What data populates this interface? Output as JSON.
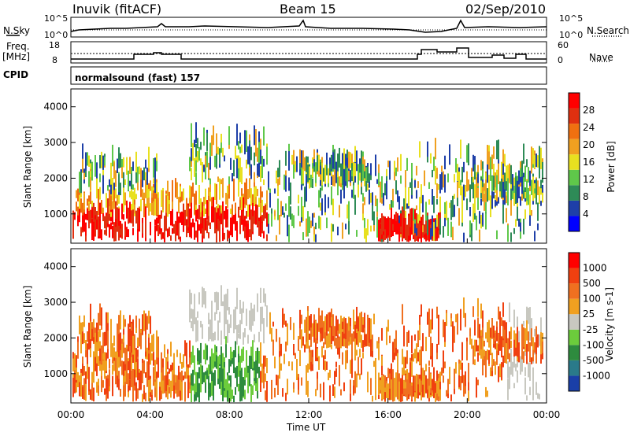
{
  "header": {
    "station": "Inuvik (fitACF)",
    "beam": "Beam 15",
    "date": "02/Sep/2010"
  },
  "side_labels": {
    "nsky": "N.Sky",
    "nsearch": "N.Search",
    "freq": "Freq.",
    "freq_unit": "[MHz]",
    "nave": "Nave",
    "cpid": "CPID",
    "cpid_value": "normalsound (fast) 157"
  },
  "noise_panel": {
    "left_ticks": [
      "10^5",
      "10^0"
    ],
    "right_ticks": [
      "10^5",
      "10^0"
    ]
  },
  "freq_panel": {
    "left_ticks": [
      "18",
      "8"
    ],
    "right_ticks": [
      "60",
      "0"
    ]
  },
  "chart_data": [
    {
      "type": "heatmap",
      "name": "power",
      "ylabel": "Slant Range [km]",
      "y_ticks": [
        "4000",
        "3000",
        "2000",
        "1000"
      ],
      "ylim": [
        180,
        4500
      ],
      "colorbar_label": "Power [dB]",
      "colorbar_ticks": [
        "28",
        "24",
        "20",
        "16",
        "12",
        "8",
        "4"
      ],
      "colors": [
        "#0000ff",
        "#1e3fa8",
        "#2e8b57",
        "#5fc84a",
        "#e8e020",
        "#f0a020",
        "#f07010",
        "#e03010",
        "#ff0000"
      ]
    },
    {
      "type": "heatmap",
      "name": "velocity",
      "ylabel": "Slant Range [km]",
      "y_ticks": [
        "4000",
        "3000",
        "2000",
        "1000"
      ],
      "ylim": [
        180,
        4500
      ],
      "colorbar_label": "Velocity [m s-1]",
      "colorbar_ticks": [
        "1000",
        "500",
        "100",
        "25",
        "-25",
        "-100",
        "-500",
        "-1000"
      ],
      "colors": [
        "#1a3fa8",
        "#2a7a8a",
        "#2e8b3e",
        "#6ccc3c",
        "#c8c8c0",
        "#f0a020",
        "#f07020",
        "#f04010",
        "#ff0000"
      ]
    }
  ],
  "x_axis": {
    "ticks": [
      "00:00",
      "04:00",
      "08:00",
      "12:00",
      "16:00",
      "20:00",
      "00:00"
    ],
    "label": "Time UT"
  }
}
